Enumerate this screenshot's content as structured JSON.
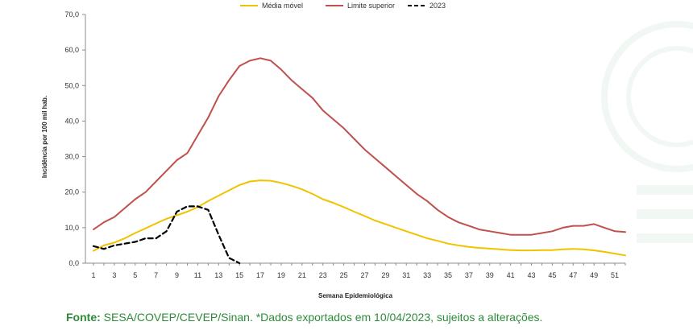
{
  "chart_data": {
    "type": "line",
    "xlabel": "Semana Epidemiológica",
    "ylabel": "Incidência por 100 mil hab.",
    "ylim": [
      0,
      70
    ],
    "yticks": [
      "0,0",
      "10,0",
      "20,0",
      "30,0",
      "40,0",
      "50,0",
      "60,0",
      "70,0"
    ],
    "xticks": [
      "1",
      "3",
      "5",
      "7",
      "9",
      "11",
      "13",
      "15",
      "17",
      "19",
      "21",
      "23",
      "25",
      "27",
      "29",
      "31",
      "33",
      "35",
      "37",
      "39",
      "41",
      "43",
      "45",
      "47",
      "49",
      "51"
    ],
    "xlim": [
      1,
      52
    ],
    "grid": false,
    "legend_position": "top",
    "series": [
      {
        "name": "Média móvel",
        "color": "#f2c200",
        "style": "solid",
        "x": [
          1,
          2,
          3,
          4,
          5,
          6,
          7,
          8,
          9,
          10,
          11,
          12,
          13,
          14,
          15,
          16,
          17,
          18,
          19,
          20,
          21,
          22,
          23,
          24,
          25,
          26,
          27,
          28,
          29,
          30,
          31,
          32,
          33,
          34,
          35,
          36,
          37,
          38,
          39,
          40,
          41,
          42,
          43,
          44,
          45,
          46,
          47,
          48,
          49,
          50,
          51,
          52
        ],
        "y": [
          3.5,
          5.0,
          5.8,
          7.0,
          8.5,
          9.8,
          11.2,
          12.5,
          13.5,
          14.5,
          15.8,
          17.5,
          19.0,
          20.5,
          22.0,
          23.0,
          23.3,
          23.2,
          22.6,
          21.8,
          20.8,
          19.5,
          18.0,
          17.0,
          15.8,
          14.5,
          13.3,
          12.0,
          11.0,
          10.0,
          9.0,
          8.0,
          7.0,
          6.3,
          5.5,
          5.0,
          4.6,
          4.3,
          4.1,
          3.9,
          3.7,
          3.6,
          3.6,
          3.7,
          3.7,
          3.9,
          4.0,
          3.9,
          3.6,
          3.2,
          2.7,
          2.2
        ]
      },
      {
        "name": "Limite superior",
        "color": "#c0504d",
        "style": "solid",
        "x": [
          1,
          2,
          3,
          4,
          5,
          6,
          7,
          8,
          9,
          10,
          11,
          12,
          13,
          14,
          15,
          16,
          17,
          18,
          19,
          20,
          21,
          22,
          23,
          24,
          25,
          26,
          27,
          28,
          29,
          30,
          31,
          32,
          33,
          34,
          35,
          36,
          37,
          38,
          39,
          40,
          41,
          42,
          43,
          44,
          45,
          46,
          47,
          48,
          49,
          50,
          51,
          52
        ],
        "y": [
          9.5,
          11.5,
          13.0,
          15.5,
          18.0,
          20.0,
          23.0,
          26.0,
          29.0,
          31.0,
          36.0,
          41.0,
          47.0,
          51.5,
          55.5,
          57.0,
          57.7,
          57.0,
          54.5,
          51.5,
          49.0,
          46.5,
          43.0,
          40.5,
          38.0,
          35.0,
          32.0,
          29.5,
          27.0,
          24.5,
          22.0,
          19.5,
          17.5,
          15.0,
          13.0,
          11.5,
          10.5,
          9.5,
          9.0,
          8.5,
          8.0,
          8.0,
          8.0,
          8.5,
          9.0,
          10.0,
          10.5,
          10.5,
          11.0,
          10.0,
          9.0,
          8.8
        ]
      },
      {
        "name": "2023",
        "color": "#000000",
        "style": "dashed",
        "x": [
          1,
          2,
          3,
          4,
          5,
          6,
          7,
          8,
          9,
          10,
          11,
          12,
          13,
          14,
          15
        ],
        "y": [
          4.8,
          4.0,
          5.0,
          5.5,
          6.0,
          7.0,
          7.0,
          9.0,
          14.5,
          16.0,
          16.0,
          15.0,
          8.0,
          1.5,
          0.0
        ]
      }
    ]
  },
  "footer": {
    "label": "Fonte:",
    "text": " SESA/COVEP/CEVEP/Sinan. *Dados exportados em 10/04/2023, sujeitos a alterações."
  }
}
